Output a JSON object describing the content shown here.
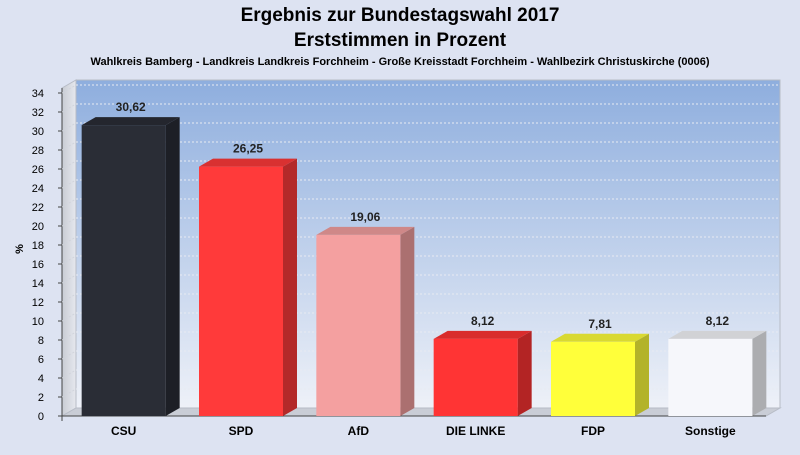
{
  "chart_data": {
    "type": "bar",
    "title": "Ergebnis zur Bundestagswahl 2017",
    "title_line2": "Erststimmen in Prozent",
    "subtitle": "Wahlkreis Bamberg - Landkreis Landkreis Forchheim - Große Kreisstadt Forchheim - Wahlbezirk Christuskirche (0006)",
    "ylabel": "%",
    "xlabel": "",
    "ylim": [
      0,
      34
    ],
    "ytick_step": 2,
    "grid": true,
    "categories": [
      "CSU",
      "SPD",
      "AfD",
      "DIE LINKE",
      "FDP",
      "Sonstige"
    ],
    "values": [
      30.62,
      26.25,
      19.06,
      8.12,
      7.81,
      8.12
    ],
    "value_labels": [
      "30,62",
      "26,25",
      "19,06",
      "8,12",
      "7,81",
      "8,12"
    ],
    "colors": [
      "#2a2d36",
      "#ff3a3a",
      "#f4a0a0",
      "#ff3434",
      "#ffff3a",
      "#f6f7fb"
    ]
  }
}
